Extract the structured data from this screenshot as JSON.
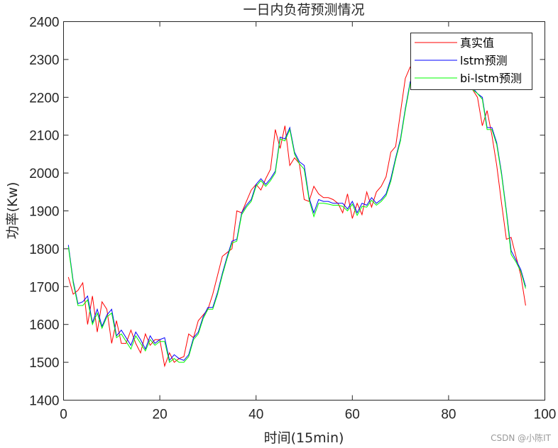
{
  "chart_data": {
    "type": "line",
    "title": "一日内负荷预测情况",
    "xlabel": "时间(15min)",
    "ylabel": "功率(Kw)",
    "xlim": [
      0,
      100
    ],
    "ylim": [
      1400,
      2400
    ],
    "xticks": [
      0,
      20,
      40,
      60,
      80,
      100
    ],
    "yticks": [
      1400,
      1500,
      1600,
      1700,
      1800,
      1900,
      2000,
      2100,
      2200,
      2300,
      2400
    ],
    "grid": false,
    "legend_position": "upper right",
    "x": [
      1,
      2,
      3,
      4,
      5,
      6,
      7,
      8,
      9,
      10,
      11,
      12,
      13,
      14,
      15,
      16,
      17,
      18,
      19,
      20,
      21,
      22,
      23,
      24,
      25,
      26,
      27,
      28,
      29,
      30,
      31,
      32,
      33,
      34,
      35,
      36,
      37,
      38,
      39,
      40,
      41,
      42,
      43,
      44,
      45,
      46,
      47,
      48,
      49,
      50,
      51,
      52,
      53,
      54,
      55,
      56,
      57,
      58,
      59,
      60,
      61,
      62,
      63,
      64,
      65,
      66,
      67,
      68,
      69,
      70,
      71,
      72,
      73,
      74,
      75,
      76,
      77,
      78,
      79,
      80,
      81,
      82,
      83,
      84,
      85,
      86,
      87,
      88,
      89,
      90,
      91,
      92,
      93,
      94,
      95,
      96
    ],
    "series": [
      {
        "name": "真实值",
        "color": "#ff0000",
        "values": [
          1725,
          1680,
          1690,
          1710,
          1600,
          1675,
          1580,
          1660,
          1640,
          1550,
          1610,
          1550,
          1550,
          1585,
          1550,
          1525,
          1575,
          1545,
          1560,
          1560,
          1490,
          1525,
          1500,
          1510,
          1515,
          1575,
          1565,
          1610,
          1625,
          1640,
          1680,
          1730,
          1780,
          1790,
          1800,
          1900,
          1895,
          1925,
          1955,
          1970,
          1955,
          1985,
          2010,
          2115,
          2065,
          2125,
          2020,
          2040,
          2025,
          1930,
          1925,
          1965,
          1945,
          1935,
          1935,
          1930,
          1920,
          1895,
          1945,
          1880,
          1920,
          1890,
          1950,
          1910,
          1950,
          1965,
          1990,
          2055,
          2070,
          2160,
          2250,
          2280,
          2290,
          2300,
          2305,
          2310,
          2310,
          2305,
          2300,
          2290,
          2285,
          2280,
          2270,
          2250,
          2220,
          2200,
          2125,
          2165,
          2100,
          2020,
          1920,
          1825,
          1830,
          1780,
          1730,
          1650
        ]
      },
      {
        "name": "lstm预测",
        "color": "#0000ff",
        "values": [
          1810,
          1715,
          1655,
          1660,
          1675,
          1605,
          1640,
          1595,
          1625,
          1640,
          1570,
          1585,
          1565,
          1545,
          1580,
          1560,
          1535,
          1570,
          1550,
          1560,
          1565,
          1505,
          1520,
          1510,
          1505,
          1520,
          1565,
          1580,
          1620,
          1645,
          1645,
          1685,
          1735,
          1780,
          1820,
          1825,
          1895,
          1915,
          1930,
          1970,
          1985,
          1970,
          1985,
          2005,
          2095,
          2090,
          2120,
          2055,
          2030,
          2020,
          1935,
          1895,
          1930,
          1925,
          1925,
          1920,
          1920,
          1920,
          1905,
          1925,
          1895,
          1920,
          1915,
          1935,
          1920,
          1930,
          1945,
          1985,
          2040,
          2090,
          2170,
          2240,
          2270,
          2280,
          2290,
          2295,
          2295,
          2290,
          2285,
          2280,
          2275,
          2270,
          2260,
          2245,
          2225,
          2210,
          2200,
          2120,
          2120,
          2080,
          2000,
          1900,
          1795,
          1770,
          1745,
          1700
        ]
      },
      {
        "name": "bi-lstm预测",
        "color": "#00ff00",
        "values": [
          1805,
          1710,
          1650,
          1650,
          1665,
          1600,
          1630,
          1590,
          1620,
          1630,
          1565,
          1575,
          1555,
          1535,
          1570,
          1550,
          1530,
          1560,
          1545,
          1555,
          1555,
          1500,
          1510,
          1500,
          1500,
          1515,
          1560,
          1575,
          1615,
          1640,
          1640,
          1680,
          1730,
          1775,
          1815,
          1820,
          1890,
          1910,
          1925,
          1965,
          1980,
          1965,
          1980,
          2000,
          2090,
          2085,
          2115,
          2050,
          2025,
          2010,
          1930,
          1885,
          1920,
          1920,
          1918,
          1915,
          1915,
          1912,
          1900,
          1918,
          1888,
          1912,
          1910,
          1928,
          1915,
          1925,
          1940,
          1978,
          2035,
          2085,
          2165,
          2235,
          2265,
          2275,
          2285,
          2290,
          2290,
          2285,
          2280,
          2275,
          2270,
          2260,
          2250,
          2235,
          2220,
          2210,
          2195,
          2115,
          2115,
          2075,
          1995,
          1895,
          1785,
          1765,
          1740,
          1695
        ]
      }
    ]
  },
  "watermark": "CSDN @小陈IT"
}
